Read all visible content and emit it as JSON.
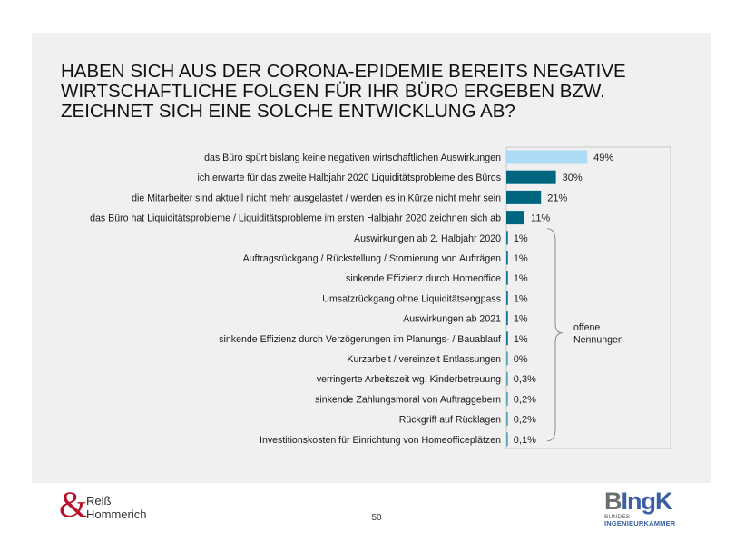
{
  "slide": {
    "title_lines": [
      "HABEN SICH AUS DER CORONA-EPIDEMIE BEREITS NEGATIVE",
      "WIRTSCHAFTLICHE FOLGEN FÜR IHR BÜRO ERGEBEN BZW.",
      "ZEICHNET SICH EINE SOLCHE ENTWICKLUNG AB?"
    ],
    "page_number": "50"
  },
  "footer": {
    "left_logo": {
      "symbol": "&",
      "line1": "Reiß",
      "line2": "Hommerich"
    },
    "right_logo": {
      "main_b": "B",
      "main_rest": "IngK",
      "sub1": "BUNDES",
      "sub2": "INGENIEURKAMMER"
    }
  },
  "colors": {
    "highlight_bar": "#addaf5",
    "main_bar": "#006680",
    "open_bar": "#1a7a92",
    "small_bar": "#5ea7b8",
    "logo_red": "#b5122b",
    "logo_blue": "#3a5fa3"
  },
  "chart_data": {
    "type": "bar",
    "orientation": "horizontal",
    "title": "Haben sich aus der Corona-Epidemie bereits negative wirtschaftliche Folgen für Ihr Büro ergeben bzw. zeichnet sich eine solche Entwicklung ab?",
    "xlabel": "",
    "ylabel": "",
    "unit": "%",
    "xlim": [
      0,
      100
    ],
    "grid": false,
    "categories": [
      "das Büro spürt bislang keine negativen wirtschaftlichen Auswirkungen",
      "ich erwarte für das zweite Halbjahr 2020 Liquiditätsprobleme des Büros",
      "die Mitarbeiter sind aktuell nicht mehr ausgelastet / werden es in Kürze nicht mehr sein",
      "das Büro hat Liquiditätsprobleme / Liquiditätsprobleme im ersten Halbjahr 2020 zeichnen sich ab",
      "Auswirkungen ab 2. Halbjahr 2020",
      "Auftragsrückgang / Rückstellung / Stornierung von Aufträgen",
      "sinkende Effizienz durch Homeoffice",
      "Umsatzrückgang ohne Liquiditätsengpass",
      "Auswirkungen ab 2021",
      "sinkende Effizienz durch Verzögerungen im Planungs- / Bauablauf",
      "Kurzarbeit / vereinzelt Entlassungen",
      "verringerte Arbeitszeit wg. Kinderbetreuung",
      "sinkende Zahlungsmoral von Auftraggebern",
      "Rückgriff auf Rücklagen",
      "Investitionskosten für Einrichtung von Homeofficeplätzen"
    ],
    "values": [
      49,
      30,
      21,
      11,
      1,
      1,
      1,
      1,
      1,
      1,
      0.4,
      0.3,
      0.2,
      0.2,
      0.1
    ],
    "value_labels": [
      "49%",
      "30%",
      "21%",
      "11%",
      "1%",
      "1%",
      "1%",
      "1%",
      "1%",
      "1%",
      "0%",
      "0,3%",
      "0,2%",
      "0,2%",
      "0,1%"
    ],
    "bar_color_keys": [
      "highlight_bar",
      "main_bar",
      "main_bar",
      "main_bar",
      "open_bar",
      "open_bar",
      "open_bar",
      "open_bar",
      "open_bar",
      "open_bar",
      "small_bar",
      "small_bar",
      "small_bar",
      "small_bar",
      "small_bar"
    ],
    "annotations": [
      {
        "type": "brace",
        "from_index": 4,
        "to_index": 14,
        "text_lines": [
          "offene",
          "Nennungen"
        ]
      }
    ]
  }
}
